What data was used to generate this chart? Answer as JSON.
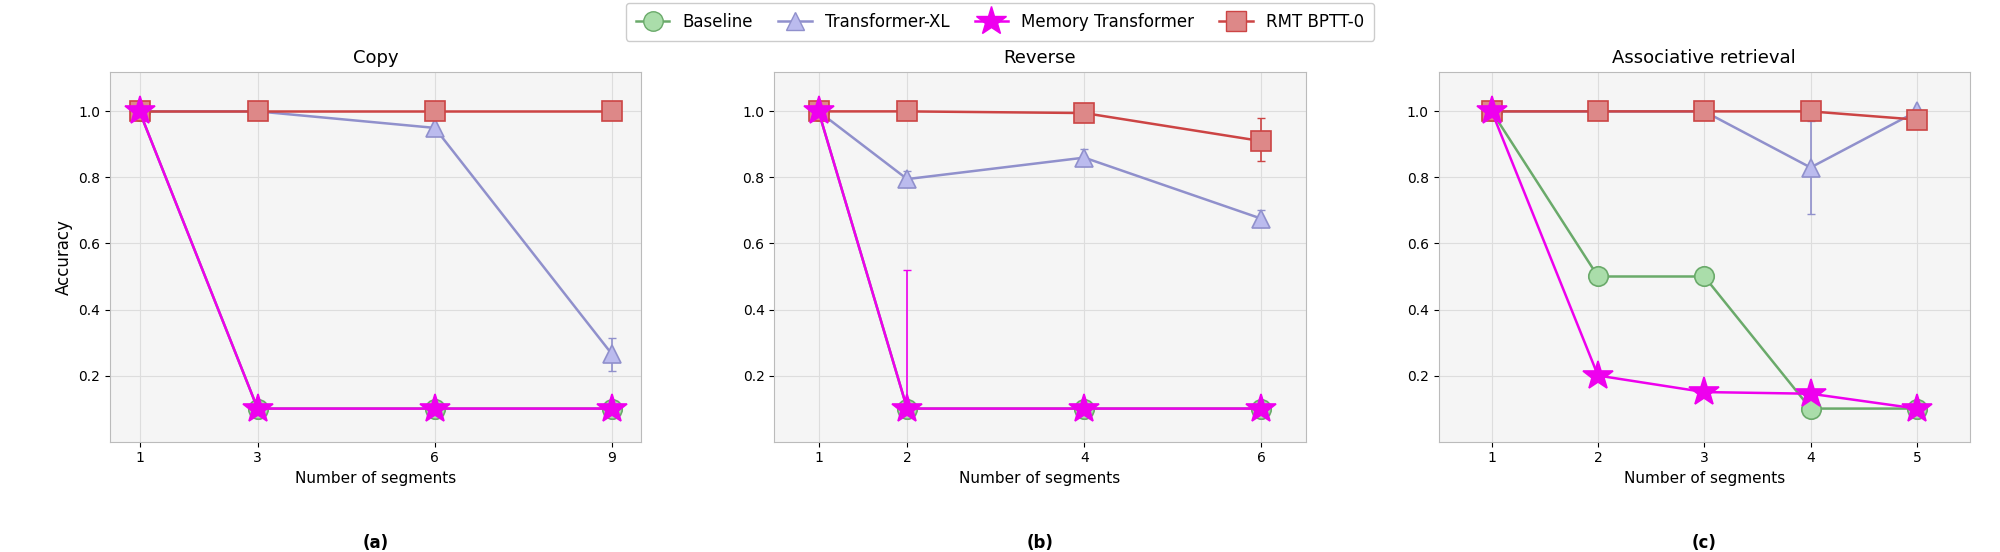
{
  "title_a": "Copy",
  "title_b": "Reverse",
  "title_c": "Associative retrieval",
  "xlabel": "Number of segments",
  "ylabel": "Accuracy",
  "label_a": "(a)",
  "label_b": "(b)",
  "label_c": "(c)",
  "copy": {
    "x": [
      1,
      3,
      6,
      9
    ],
    "baseline": [
      1.0,
      0.1,
      0.1,
      0.1
    ],
    "transformer_xl": [
      1.0,
      1.0,
      0.95,
      0.265
    ],
    "memory_transformer": [
      1.0,
      0.1,
      0.1,
      0.1
    ],
    "rmt_bptt0": [
      1.0,
      1.0,
      1.0,
      1.0
    ],
    "rmt_bptt0_err_low": [
      0.0,
      0.0,
      0.0,
      0.0
    ],
    "rmt_bptt0_err_high": [
      0.0,
      0.0,
      0.0,
      0.0
    ],
    "transformer_xl_err_low": [
      0.0,
      0.0,
      0.0,
      0.05
    ],
    "transformer_xl_err_high": [
      0.0,
      0.0,
      0.0,
      0.05
    ]
  },
  "reverse": {
    "x": [
      1,
      2,
      4,
      6
    ],
    "baseline": [
      1.0,
      0.1,
      0.1,
      0.1
    ],
    "transformer_xl": [
      1.0,
      0.795,
      0.86,
      0.675
    ],
    "memory_transformer": [
      1.0,
      0.1,
      0.1,
      0.1
    ],
    "rmt_bptt0": [
      1.0,
      1.0,
      0.995,
      0.91
    ],
    "rmt_bptt0_err_low": [
      0.0,
      0.0,
      0.0,
      0.06
    ],
    "rmt_bptt0_err_high": [
      0.0,
      0.0,
      0.005,
      0.07
    ],
    "transformer_xl_err_low": [
      0.0,
      0.025,
      0.025,
      0.025
    ],
    "transformer_xl_err_high": [
      0.0,
      0.025,
      0.025,
      0.025
    ],
    "memory_transformer_err_low": [
      0.0,
      0.0,
      0.0,
      0.0
    ],
    "memory_transformer_err_high": [
      0.0,
      0.42,
      0.0,
      0.0
    ]
  },
  "assoc": {
    "x": [
      1,
      2,
      3,
      4,
      5
    ],
    "baseline": [
      1.0,
      0.5,
      0.5,
      0.1,
      0.1
    ],
    "transformer_xl": [
      1.0,
      1.0,
      1.0,
      0.83,
      1.0
    ],
    "memory_transformer": [
      1.0,
      0.2,
      0.15,
      0.145,
      0.1
    ],
    "rmt_bptt0": [
      1.0,
      1.0,
      1.0,
      1.0,
      0.975
    ],
    "rmt_bptt0_err_low": [
      0.0,
      0.0,
      0.0,
      0.0,
      0.0
    ],
    "rmt_bptt0_err_high": [
      0.0,
      0.0,
      0.0,
      0.0,
      0.0
    ],
    "transformer_xl_err_low": [
      0.0,
      0.0,
      0.0,
      0.14,
      0.0
    ],
    "transformer_xl_err_high": [
      0.0,
      0.0,
      0.0,
      0.14,
      0.0
    ]
  },
  "color_baseline": "#6aaa6a",
  "color_transformer_xl": "#9090cc",
  "color_memory_transformer": "#ee00ee",
  "color_rmt": "#cc4444",
  "color_baseline_fill": "#aaddaa",
  "color_transformer_xl_fill": "#bbbbee",
  "color_rmt_fill": "#dd8888",
  "marker_baseline": "o",
  "marker_transformer_xl": "^",
  "marker_memory_transformer": "*",
  "marker_rmt": "s",
  "markersize_baseline": 14,
  "markersize_transformer_xl": 13,
  "markersize_memory_transformer": 22,
  "markersize_rmt": 14,
  "legend_labels": [
    "Baseline",
    "Transformer-XL",
    "Memory Transformer",
    "RMT BPTT-0"
  ],
  "background_color": "#ffffff",
  "axes_bg": "#f5f5f5",
  "grid_color": "#dddddd"
}
